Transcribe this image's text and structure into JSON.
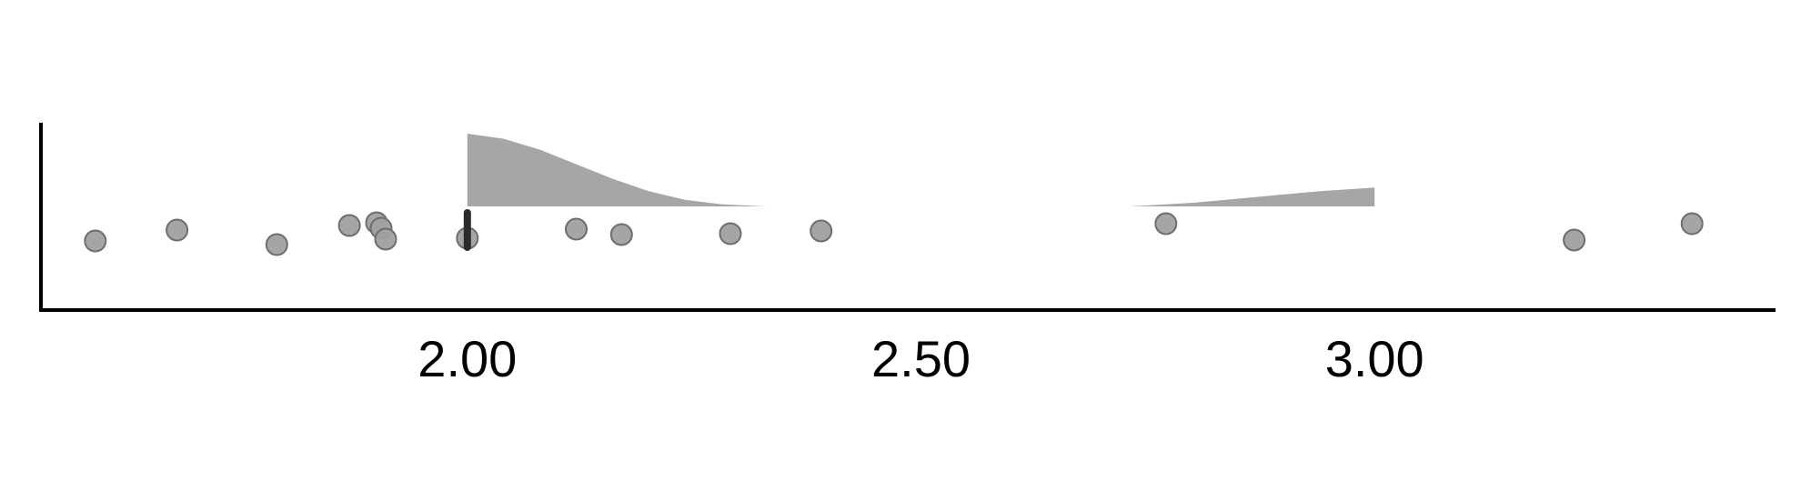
{
  "chart_data": {
    "type": "scatter",
    "title": "",
    "xlabel": "",
    "ylabel": "",
    "xlim": [
      1.53,
      3.44
    ],
    "x_ticks": [
      2.0,
      2.5,
      3.0
    ],
    "x_tick_labels": [
      "2.00",
      "2.50",
      "3.00"
    ],
    "grid": false,
    "legend": "none",
    "point_color": "#a0a0a0",
    "point_stroke": "#6e6e6e",
    "density_color": "#a6a6a6",
    "median_color": "#2b2b2b",
    "points": [
      {
        "x": 1.59,
        "jitter": 0.4
      },
      {
        "x": 1.68,
        "jitter": 0.52
      },
      {
        "x": 1.79,
        "jitter": 0.36
      },
      {
        "x": 1.87,
        "jitter": 0.57
      },
      {
        "x": 1.9,
        "jitter": 0.6
      },
      {
        "x": 1.905,
        "jitter": 0.54
      },
      {
        "x": 1.91,
        "jitter": 0.42
      },
      {
        "x": 2.0,
        "jitter": 0.43
      },
      {
        "x": 2.12,
        "jitter": 0.53
      },
      {
        "x": 2.17,
        "jitter": 0.47
      },
      {
        "x": 2.29,
        "jitter": 0.48
      },
      {
        "x": 2.39,
        "jitter": 0.51
      },
      {
        "x": 2.77,
        "jitter": 0.59
      },
      {
        "x": 3.22,
        "jitter": 0.41
      },
      {
        "x": 3.35,
        "jitter": 0.59
      }
    ],
    "median": 2.0,
    "density_segments": [
      {
        "x": [
          2.0,
          2.04,
          2.08,
          2.12,
          2.16,
          2.2,
          2.24,
          2.28,
          2.32,
          2.33
        ],
        "density": [
          1.0,
          0.93,
          0.78,
          0.58,
          0.38,
          0.21,
          0.09,
          0.03,
          0.005,
          0.0
        ]
      },
      {
        "x": [
          2.73,
          2.8,
          2.87,
          2.94,
          3.0
        ],
        "density": [
          0.0,
          0.05,
          0.13,
          0.21,
          0.26
        ]
      }
    ]
  }
}
